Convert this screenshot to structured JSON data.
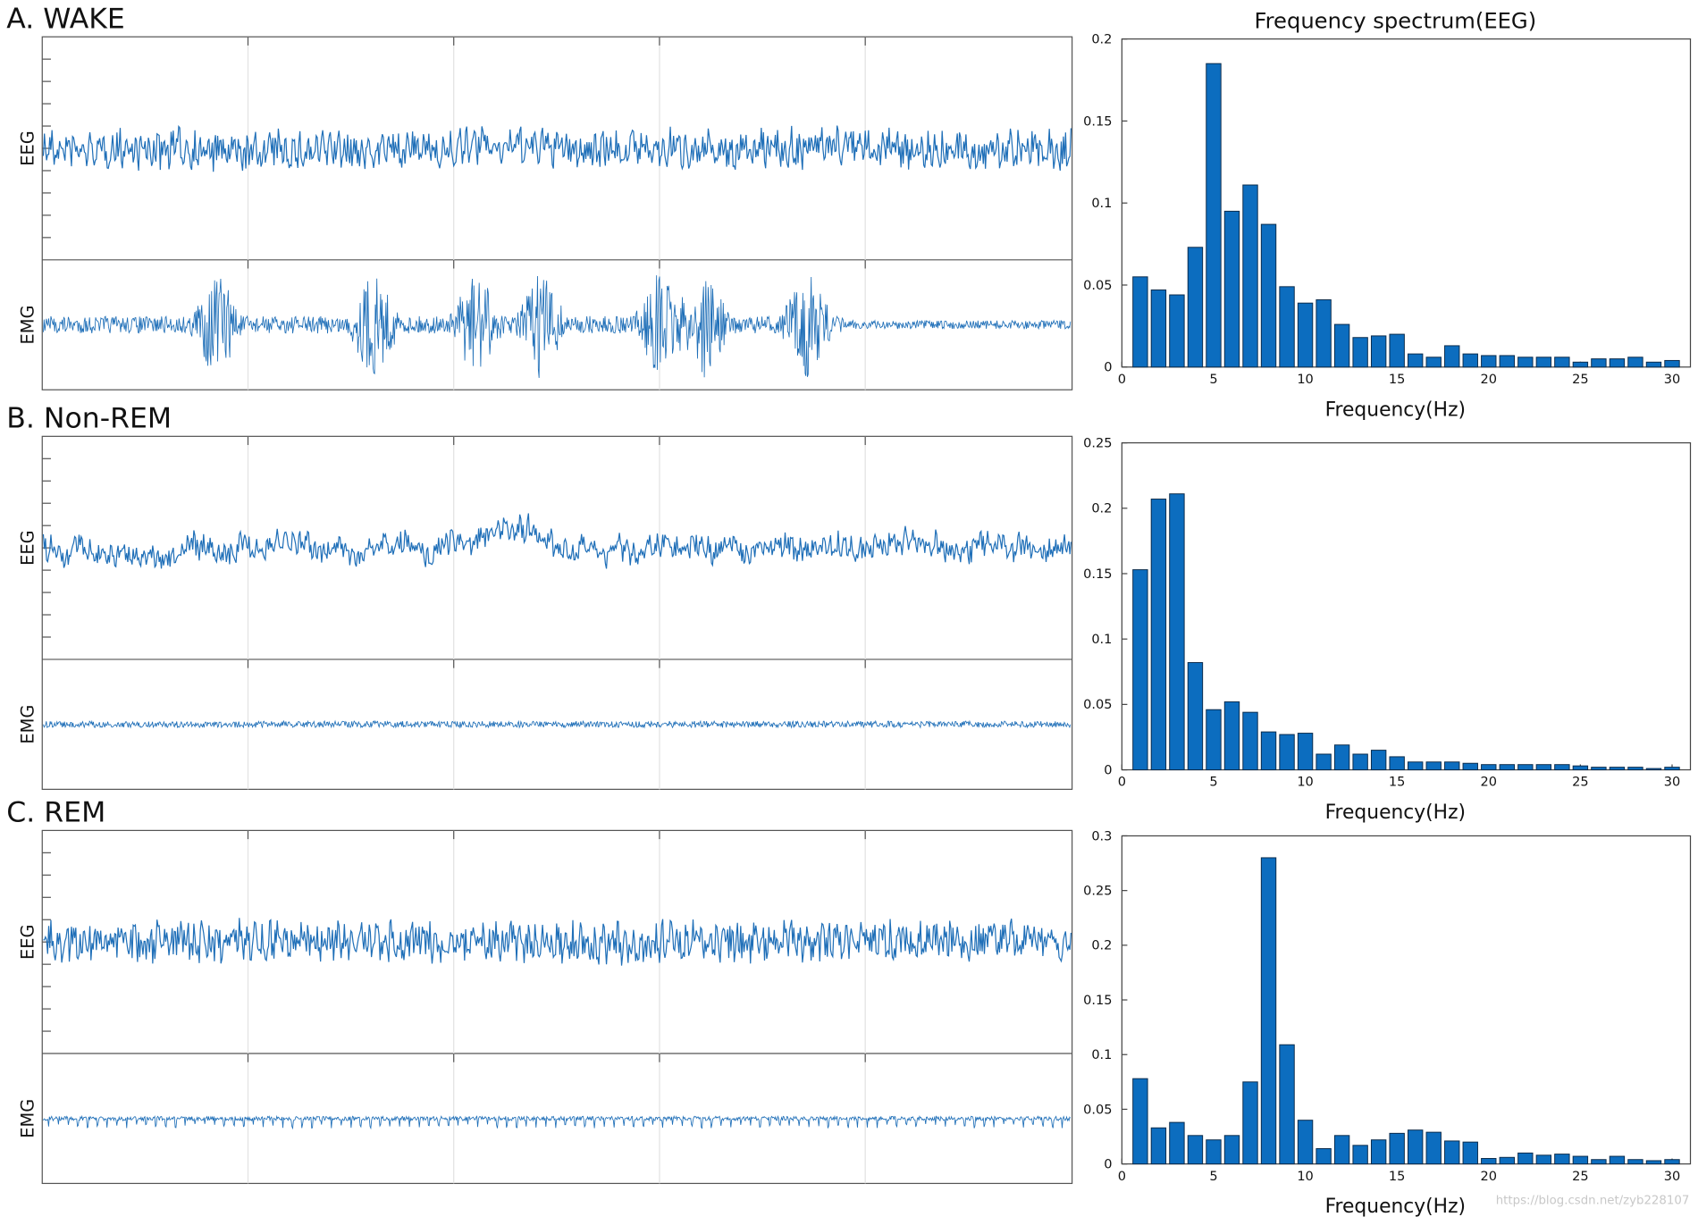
{
  "chart_data": [
    {
      "type": "bar",
      "panel_title": "A. WAKE",
      "title": "Frequency spectrum(EEG)",
      "x_label": "Frequency(Hz)",
      "signal_labels": [
        "EEG",
        "EMG"
      ],
      "x": [
        1,
        2,
        3,
        4,
        5,
        6,
        7,
        8,
        9,
        10,
        11,
        12,
        13,
        14,
        15,
        16,
        17,
        18,
        19,
        20,
        21,
        22,
        23,
        24,
        25,
        26,
        27,
        28,
        29,
        30
      ],
      "values": [
        0.055,
        0.047,
        0.044,
        0.073,
        0.185,
        0.095,
        0.111,
        0.087,
        0.049,
        0.039,
        0.041,
        0.026,
        0.018,
        0.019,
        0.02,
        0.008,
        0.006,
        0.013,
        0.008,
        0.007,
        0.007,
        0.006,
        0.006,
        0.006,
        0.003,
        0.005,
        0.005,
        0.006,
        0.003,
        0.004
      ],
      "color": "#0c6dbf",
      "xlim": [
        0,
        31
      ],
      "xticks": [
        0,
        5,
        10,
        15,
        20,
        25,
        30
      ],
      "ylim": [
        0,
        0.2
      ],
      "yticks": [
        0,
        0.05,
        0.1,
        0.15,
        0.2
      ]
    },
    {
      "type": "bar",
      "panel_title": "B. Non-REM",
      "x_label": "Frequency(Hz)",
      "signal_labels": [
        "EEG",
        "EMG"
      ],
      "x": [
        1,
        2,
        3,
        4,
        5,
        6,
        7,
        8,
        9,
        10,
        11,
        12,
        13,
        14,
        15,
        16,
        17,
        18,
        19,
        20,
        21,
        22,
        23,
        24,
        25,
        26,
        27,
        28,
        29,
        30
      ],
      "values": [
        0.153,
        0.207,
        0.211,
        0.082,
        0.046,
        0.052,
        0.044,
        0.029,
        0.027,
        0.028,
        0.012,
        0.019,
        0.012,
        0.015,
        0.01,
        0.006,
        0.006,
        0.006,
        0.005,
        0.004,
        0.004,
        0.004,
        0.004,
        0.004,
        0.003,
        0.002,
        0.002,
        0.002,
        0.001,
        0.002
      ],
      "color": "#0c6dbf",
      "xlim": [
        0,
        31
      ],
      "xticks": [
        0,
        5,
        10,
        15,
        20,
        25,
        30
      ],
      "ylim": [
        0,
        0.25
      ],
      "yticks": [
        0,
        0.05,
        0.1,
        0.15,
        0.2,
        0.25
      ]
    },
    {
      "type": "bar",
      "panel_title": "C. REM",
      "x_label": "Frequency(Hz)",
      "signal_labels": [
        "EEG",
        "EMG"
      ],
      "x": [
        1,
        2,
        3,
        4,
        5,
        6,
        7,
        8,
        9,
        10,
        11,
        12,
        13,
        14,
        15,
        16,
        17,
        18,
        19,
        20,
        21,
        22,
        23,
        24,
        25,
        26,
        27,
        28,
        29,
        30
      ],
      "values": [
        0.078,
        0.033,
        0.038,
        0.026,
        0.022,
        0.026,
        0.075,
        0.28,
        0.109,
        0.04,
        0.014,
        0.026,
        0.017,
        0.022,
        0.028,
        0.031,
        0.029,
        0.021,
        0.02,
        0.005,
        0.006,
        0.01,
        0.008,
        0.009,
        0.007,
        0.004,
        0.007,
        0.004,
        0.003,
        0.004
      ],
      "color": "#0c6dbf",
      "xlim": [
        0,
        31
      ],
      "xticks": [
        0,
        5,
        10,
        15,
        20,
        25,
        30
      ],
      "ylim": [
        0,
        0.3
      ],
      "yticks": [
        0,
        0.05,
        0.1,
        0.15,
        0.2,
        0.25,
        0.3
      ]
    }
  ],
  "watermark": "https://blog.csdn.net/zyb228107"
}
